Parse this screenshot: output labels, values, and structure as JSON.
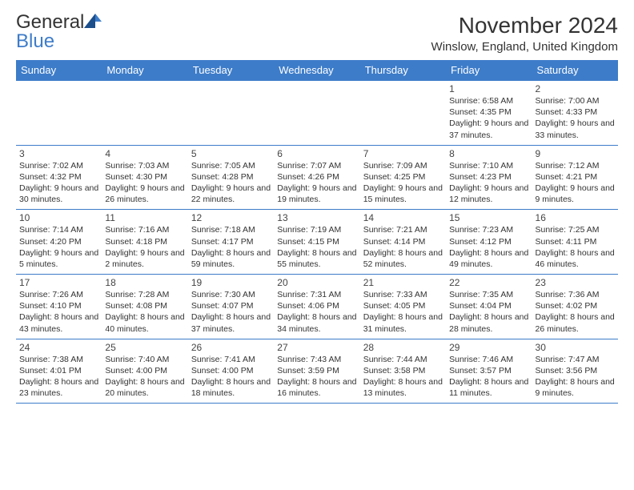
{
  "logo": {
    "part1": "General",
    "part2": "Blue"
  },
  "title": "November 2024",
  "location": "Winslow, England, United Kingdom",
  "colors": {
    "header_bg": "#3d7cc9",
    "header_fg": "#ffffff",
    "border": "#3d7cc9",
    "text": "#333333",
    "bg": "#ffffff"
  },
  "typography": {
    "title_fontsize": 28,
    "location_fontsize": 15,
    "dayhead_fontsize": 13,
    "daynum_fontsize": 12,
    "body_fontsize": 10.5
  },
  "day_headers": [
    "Sunday",
    "Monday",
    "Tuesday",
    "Wednesday",
    "Thursday",
    "Friday",
    "Saturday"
  ],
  "weeks": [
    [
      null,
      null,
      null,
      null,
      null,
      {
        "n": "1",
        "sunrise": "6:58 AM",
        "sunset": "4:35 PM",
        "daylight": "9 hours and 37 minutes."
      },
      {
        "n": "2",
        "sunrise": "7:00 AM",
        "sunset": "4:33 PM",
        "daylight": "9 hours and 33 minutes."
      }
    ],
    [
      {
        "n": "3",
        "sunrise": "7:02 AM",
        "sunset": "4:32 PM",
        "daylight": "9 hours and 30 minutes."
      },
      {
        "n": "4",
        "sunrise": "7:03 AM",
        "sunset": "4:30 PM",
        "daylight": "9 hours and 26 minutes."
      },
      {
        "n": "5",
        "sunrise": "7:05 AM",
        "sunset": "4:28 PM",
        "daylight": "9 hours and 22 minutes."
      },
      {
        "n": "6",
        "sunrise": "7:07 AM",
        "sunset": "4:26 PM",
        "daylight": "9 hours and 19 minutes."
      },
      {
        "n": "7",
        "sunrise": "7:09 AM",
        "sunset": "4:25 PM",
        "daylight": "9 hours and 15 minutes."
      },
      {
        "n": "8",
        "sunrise": "7:10 AM",
        "sunset": "4:23 PM",
        "daylight": "9 hours and 12 minutes."
      },
      {
        "n": "9",
        "sunrise": "7:12 AM",
        "sunset": "4:21 PM",
        "daylight": "9 hours and 9 minutes."
      }
    ],
    [
      {
        "n": "10",
        "sunrise": "7:14 AM",
        "sunset": "4:20 PM",
        "daylight": "9 hours and 5 minutes."
      },
      {
        "n": "11",
        "sunrise": "7:16 AM",
        "sunset": "4:18 PM",
        "daylight": "9 hours and 2 minutes."
      },
      {
        "n": "12",
        "sunrise": "7:18 AM",
        "sunset": "4:17 PM",
        "daylight": "8 hours and 59 minutes."
      },
      {
        "n": "13",
        "sunrise": "7:19 AM",
        "sunset": "4:15 PM",
        "daylight": "8 hours and 55 minutes."
      },
      {
        "n": "14",
        "sunrise": "7:21 AM",
        "sunset": "4:14 PM",
        "daylight": "8 hours and 52 minutes."
      },
      {
        "n": "15",
        "sunrise": "7:23 AM",
        "sunset": "4:12 PM",
        "daylight": "8 hours and 49 minutes."
      },
      {
        "n": "16",
        "sunrise": "7:25 AM",
        "sunset": "4:11 PM",
        "daylight": "8 hours and 46 minutes."
      }
    ],
    [
      {
        "n": "17",
        "sunrise": "7:26 AM",
        "sunset": "4:10 PM",
        "daylight": "8 hours and 43 minutes."
      },
      {
        "n": "18",
        "sunrise": "7:28 AM",
        "sunset": "4:08 PM",
        "daylight": "8 hours and 40 minutes."
      },
      {
        "n": "19",
        "sunrise": "7:30 AM",
        "sunset": "4:07 PM",
        "daylight": "8 hours and 37 minutes."
      },
      {
        "n": "20",
        "sunrise": "7:31 AM",
        "sunset": "4:06 PM",
        "daylight": "8 hours and 34 minutes."
      },
      {
        "n": "21",
        "sunrise": "7:33 AM",
        "sunset": "4:05 PM",
        "daylight": "8 hours and 31 minutes."
      },
      {
        "n": "22",
        "sunrise": "7:35 AM",
        "sunset": "4:04 PM",
        "daylight": "8 hours and 28 minutes."
      },
      {
        "n": "23",
        "sunrise": "7:36 AM",
        "sunset": "4:02 PM",
        "daylight": "8 hours and 26 minutes."
      }
    ],
    [
      {
        "n": "24",
        "sunrise": "7:38 AM",
        "sunset": "4:01 PM",
        "daylight": "8 hours and 23 minutes."
      },
      {
        "n": "25",
        "sunrise": "7:40 AM",
        "sunset": "4:00 PM",
        "daylight": "8 hours and 20 minutes."
      },
      {
        "n": "26",
        "sunrise": "7:41 AM",
        "sunset": "4:00 PM",
        "daylight": "8 hours and 18 minutes."
      },
      {
        "n": "27",
        "sunrise": "7:43 AM",
        "sunset": "3:59 PM",
        "daylight": "8 hours and 16 minutes."
      },
      {
        "n": "28",
        "sunrise": "7:44 AM",
        "sunset": "3:58 PM",
        "daylight": "8 hours and 13 minutes."
      },
      {
        "n": "29",
        "sunrise": "7:46 AM",
        "sunset": "3:57 PM",
        "daylight": "8 hours and 11 minutes."
      },
      {
        "n": "30",
        "sunrise": "7:47 AM",
        "sunset": "3:56 PM",
        "daylight": "8 hours and 9 minutes."
      }
    ]
  ],
  "labels": {
    "sunrise": "Sunrise:",
    "sunset": "Sunset:",
    "daylight": "Daylight:"
  }
}
